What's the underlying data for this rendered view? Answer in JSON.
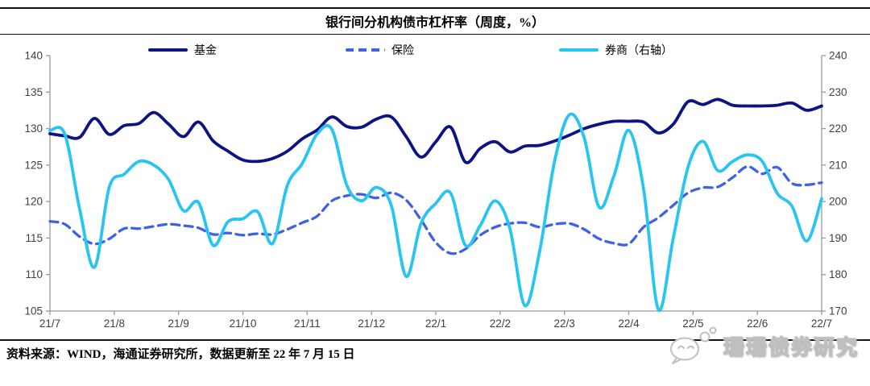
{
  "header": {
    "title": "银行间分机构债市杠杆率（周度，%）"
  },
  "legend": [
    {
      "label": "基金",
      "color": "#0C1484",
      "dashed": false
    },
    {
      "label": "保险",
      "color": "#3E61E6",
      "dashed": true
    },
    {
      "label": "券商（右轴）",
      "color": "#29C5F1",
      "dashed": false
    }
  ],
  "footer": {
    "source": "资料来源：WIND，海通证券研究所，数据更新至 22 年 7 月 15 日",
    "watermark": "珊珊债券研究"
  },
  "colors": {
    "axis": "#9a9a9a",
    "tick_label": "#3f3f3f"
  },
  "chart_data": {
    "type": "line",
    "title": "银行间分机构债市杠杆率（周度，%）",
    "x_unit": "week",
    "n_points": 53,
    "x_tick_labels": [
      "21/7",
      "21/8",
      "21/9",
      "21/10",
      "21/11",
      "21/12",
      "22/1",
      "22/2",
      "22/3",
      "22/4",
      "22/5",
      "22/6",
      "22/7"
    ],
    "left_axis": {
      "min": 105,
      "max": 140,
      "step": 5,
      "ticks": [
        140,
        135,
        130,
        125,
        120,
        115,
        110,
        105
      ]
    },
    "right_axis": {
      "min": 170,
      "max": 240,
      "step": 10,
      "ticks": [
        240,
        230,
        220,
        210,
        200,
        190,
        180,
        170
      ]
    },
    "layout": {
      "grid": false,
      "legend_position": "top"
    },
    "series": [
      {
        "id": "fund",
        "name": "基金",
        "axis": "left",
        "style": "solid",
        "color": "#0C1484",
        "values": [
          129.3,
          129.0,
          128.8,
          131.4,
          129.2,
          130.4,
          130.7,
          132.2,
          130.6,
          128.9,
          130.9,
          128.3,
          126.9,
          125.7,
          125.5,
          125.9,
          126.9,
          128.6,
          129.8,
          131.6,
          130.3,
          130.2,
          131.3,
          131.6,
          128.9,
          126.1,
          128.2,
          130.2,
          125.4,
          127.3,
          128.2,
          126.8,
          127.6,
          127.7,
          128.3,
          129.1,
          130.0,
          130.6,
          131.0,
          131.0,
          130.9,
          129.4,
          130.6,
          133.7,
          133.3,
          134.0,
          133.2,
          133.1,
          133.1,
          133.2,
          133.5,
          132.5,
          133.1
        ]
      },
      {
        "id": "insurance",
        "name": "保险",
        "axis": "left",
        "style": "dashed",
        "color": "#3E61E6",
        "values": [
          117.3,
          116.9,
          115.2,
          114.2,
          114.9,
          116.3,
          116.3,
          116.6,
          116.9,
          116.7,
          116.4,
          115.5,
          115.7,
          115.4,
          115.6,
          115.5,
          116.2,
          117.1,
          118.0,
          120.1,
          120.8,
          121.0,
          120.5,
          121.2,
          120.2,
          117.5,
          114.4,
          112.9,
          113.5,
          115.4,
          116.5,
          117.0,
          117.1,
          116.5,
          116.9,
          117.0,
          116.2,
          114.9,
          114.3,
          114.2,
          116.5,
          117.8,
          119.5,
          121.2,
          121.9,
          122.0,
          123.3,
          124.8,
          123.8,
          124.7,
          122.5,
          122.3,
          122.6
        ]
      },
      {
        "id": "broker",
        "name": "券商（右轴）",
        "axis": "right",
        "style": "solid",
        "color": "#29C5F1",
        "values": [
          219.5,
          218.5,
          198.0,
          182.0,
          204.0,
          207.5,
          211.0,
          210.0,
          206.0,
          197.5,
          199.8,
          188.0,
          194.5,
          195.3,
          197.2,
          188.5,
          204.5,
          210.4,
          218.5,
          219.8,
          204.5,
          200.2,
          203.9,
          199.0,
          179.5,
          194.0,
          199.5,
          202.3,
          188.0,
          193.5,
          200.2,
          192.5,
          171.5,
          186.5,
          211.0,
          223.8,
          217.5,
          198.5,
          207.0,
          219.5,
          203.5,
          170.4,
          190.0,
          209.5,
          216.5,
          208.5,
          211.0,
          212.8,
          211.0,
          202.3,
          198.7,
          189.2,
          200.8
        ]
      }
    ]
  }
}
